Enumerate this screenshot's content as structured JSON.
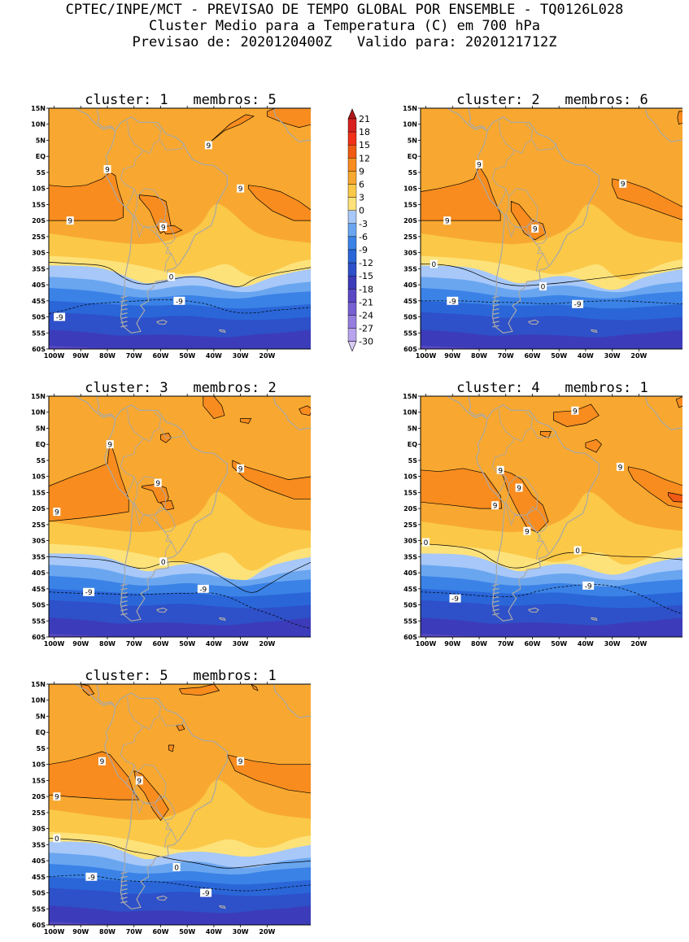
{
  "header": {
    "line1": "CPTEC/INPE/MCT - PREVISAO DE TEMPO GLOBAL POR ENSEMBLE - TQ0126L028",
    "line2": "Cluster Medio para a Temperatura (C) em 700 hPa",
    "line3": "Previsao de: 2020120400Z   Valido para: 2020121712Z"
  },
  "axes": {
    "lat_labels": [
      "15N",
      "10N",
      "5N",
      "EQ",
      "5S",
      "10S",
      "15S",
      "20S",
      "25S",
      "30S",
      "35S",
      "40S",
      "45S",
      "50S",
      "55S",
      "60S"
    ],
    "lon_labels": [
      "100W",
      "90W",
      "80W",
      "70W",
      "60W",
      "50W",
      "40W",
      "30W",
      "20W"
    ]
  },
  "colorbar": {
    "levels": [
      "21",
      "18",
      "15",
      "12",
      "9",
      "6",
      "3",
      "0",
      "-3",
      "-6",
      "-9",
      "-12",
      "-15",
      "-18",
      "-21",
      "-24",
      "-27",
      "-30"
    ],
    "colors": [
      "#b01818",
      "#d82020",
      "#f03018",
      "#f05a14",
      "#f88c1e",
      "#f8a830",
      "#fbc848",
      "#fde27a",
      "#a7c8f8",
      "#6aa6f0",
      "#3a82e6",
      "#2a66d8",
      "#2e50c8",
      "#3c3cba",
      "#5a48c4",
      "#7660d2",
      "#967ee0",
      "#b8a4ec",
      "#d8ccf6"
    ]
  },
  "panels": [
    {
      "title": "cluster: 1   membros: 5",
      "contour_labels": [
        "9",
        "9",
        "9",
        "9",
        "9",
        "0",
        "-9",
        "-9"
      ]
    },
    {
      "title": "cluster: 2   membros: 6",
      "contour_labels": [
        "9",
        "9",
        "9",
        "9",
        "0",
        "0",
        "-9",
        "-9"
      ]
    },
    {
      "title": "cluster: 3   membros: 2",
      "contour_labels": [
        "9",
        "9",
        "9",
        "9",
        "0",
        "-9",
        "-9"
      ]
    },
    {
      "title": "cluster: 4   membros: 1",
      "contour_labels": [
        "9",
        "9",
        "9",
        "9",
        "9",
        "9",
        "0",
        "0",
        "-9",
        "-9"
      ]
    },
    {
      "title": "cluster: 5   membros: 1",
      "contour_labels": [
        "9",
        "9",
        "9",
        "9",
        "0",
        "0",
        "-9",
        "-9"
      ]
    }
  ]
}
